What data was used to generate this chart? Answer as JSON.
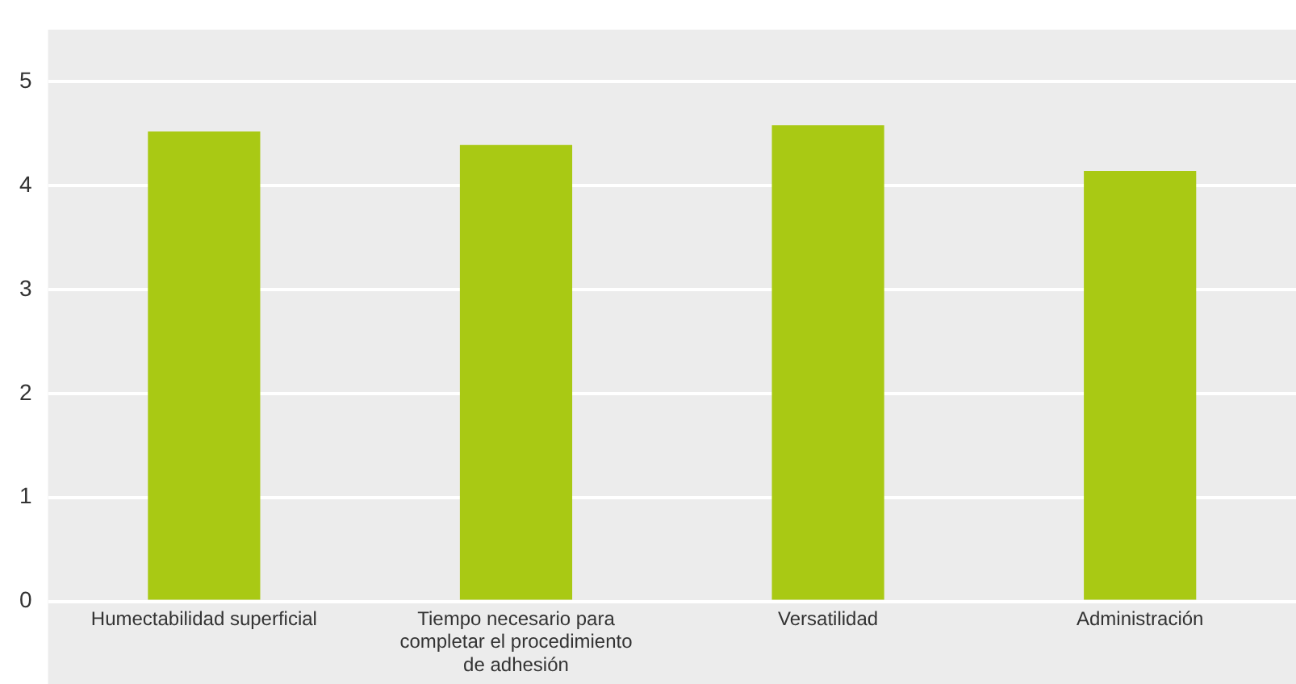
{
  "chart_data": {
    "type": "bar",
    "categories": [
      "Humectabilidad superficial",
      "Tiempo necesario para completar el procedimiento de adhesión",
      "Versatilidad",
      "Administración"
    ],
    "values": [
      4.52,
      4.39,
      4.58,
      4.14
    ],
    "color": "#a9c914",
    "ylim": [
      0,
      5.5
    ],
    "yticks": [
      0,
      1,
      2,
      3,
      4,
      5
    ],
    "grid": "y",
    "legend": false
  }
}
